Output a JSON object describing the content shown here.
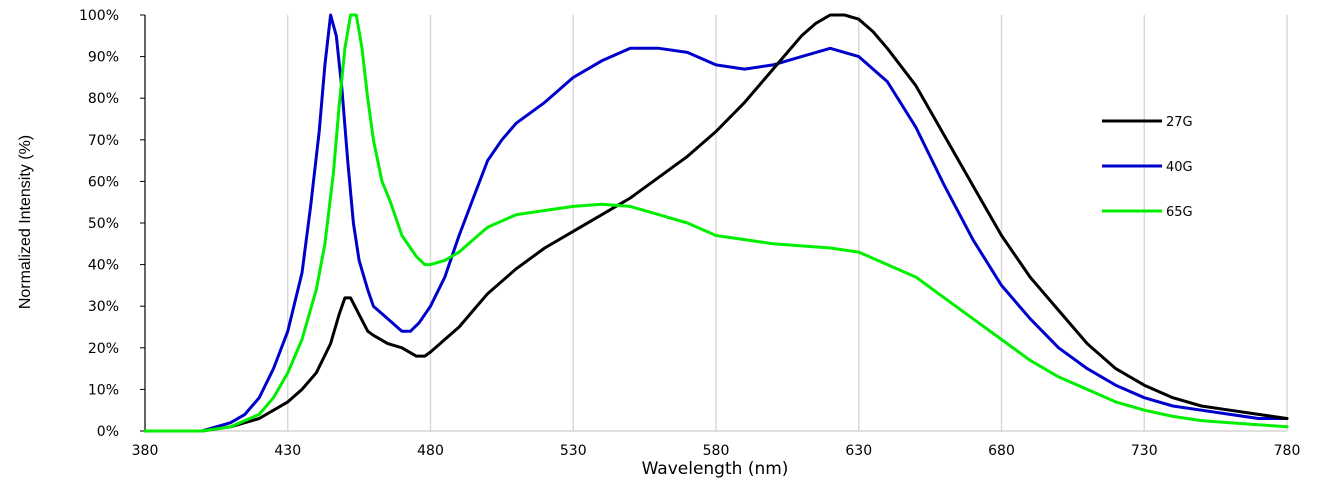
{
  "chart_data": {
    "type": "line",
    "title": "",
    "xlabel": "Wavelength (nm)",
    "ylabel": "Normalized Intensity (%)",
    "xlim": [
      380,
      780
    ],
    "ylim": [
      0,
      100
    ],
    "x_ticks": [
      "380",
      "430",
      "480",
      "530",
      "580",
      "630",
      "680",
      "730",
      "780"
    ],
    "y_ticks": [
      "0%",
      "10%",
      "20%",
      "30%",
      "40%",
      "50%",
      "60%",
      "70%",
      "80%",
      "90%",
      "100%"
    ],
    "grid": "vertical",
    "legend": "right",
    "series": [
      {
        "name": "27G",
        "color": "#000000",
        "x": [
          380,
          390,
          400,
          410,
          420,
          430,
          435,
          440,
          445,
          448,
          450,
          452,
          455,
          458,
          460,
          465,
          470,
          475,
          478,
          480,
          485,
          490,
          495,
          500,
          510,
          520,
          530,
          540,
          550,
          560,
          570,
          580,
          590,
          600,
          605,
          610,
          615,
          620,
          625,
          630,
          635,
          640,
          650,
          660,
          670,
          680,
          690,
          700,
          710,
          720,
          730,
          740,
          750,
          760,
          770,
          780
        ],
        "y": [
          0,
          0,
          0,
          1,
          3,
          7,
          10,
          14,
          21,
          28,
          32,
          32,
          28,
          24,
          23,
          21,
          20,
          18,
          18,
          19,
          22,
          25,
          29,
          33,
          39,
          44,
          48,
          52,
          56,
          61,
          66,
          72,
          79,
          87,
          91,
          95,
          98,
          100,
          100,
          99,
          96,
          92,
          83,
          71,
          59,
          47,
          37,
          29,
          21,
          15,
          11,
          8,
          6,
          5,
          4,
          3
        ]
      },
      {
        "name": "40G",
        "color": "#0000cc",
        "x": [
          380,
          390,
          400,
          405,
          410,
          415,
          420,
          425,
          430,
          435,
          438,
          441,
          443,
          445,
          447,
          449,
          451,
          453,
          455,
          458,
          460,
          465,
          470,
          473,
          476,
          480,
          485,
          490,
          495,
          500,
          505,
          510,
          520,
          530,
          540,
          550,
          560,
          570,
          580,
          590,
          600,
          610,
          620,
          630,
          640,
          650,
          660,
          670,
          680,
          690,
          700,
          710,
          720,
          730,
          740,
          750,
          760,
          770,
          780
        ],
        "y": [
          0,
          0,
          0,
          1,
          2,
          4,
          8,
          15,
          24,
          38,
          54,
          72,
          88,
          100,
          95,
          82,
          65,
          50,
          41,
          34,
          30,
          27,
          24,
          24,
          26,
          30,
          37,
          47,
          56,
          65,
          70,
          74,
          79,
          85,
          89,
          92,
          92,
          91,
          88,
          87,
          88,
          90,
          92,
          90,
          84,
          73,
          59,
          46,
          35,
          27,
          20,
          15,
          11,
          8,
          6,
          5,
          4,
          3,
          3
        ]
      },
      {
        "name": "65G",
        "color": "#00ee00",
        "x": [
          380,
          390,
          400,
          410,
          420,
          425,
          430,
          435,
          440,
          443,
          446,
          448,
          450,
          452,
          454,
          456,
          458,
          460,
          463,
          466,
          470,
          475,
          478,
          480,
          485,
          490,
          495,
          500,
          510,
          520,
          530,
          540,
          550,
          560,
          570,
          580,
          590,
          600,
          610,
          620,
          630,
          640,
          650,
          660,
          670,
          680,
          690,
          700,
          710,
          720,
          730,
          740,
          750,
          760,
          770,
          780
        ],
        "y": [
          0,
          0,
          0,
          1,
          4,
          8,
          14,
          22,
          34,
          45,
          62,
          78,
          92,
          100,
          100,
          92,
          80,
          70,
          60,
          55,
          47,
          42,
          40,
          40,
          41,
          43,
          46,
          49,
          52,
          53,
          54,
          54.5,
          54,
          52,
          50,
          47,
          46,
          45,
          44.5,
          44,
          43,
          40,
          37,
          32,
          27,
          22,
          17,
          13,
          10,
          7,
          5,
          3.5,
          2.5,
          2,
          1.5,
          1
        ]
      }
    ]
  }
}
